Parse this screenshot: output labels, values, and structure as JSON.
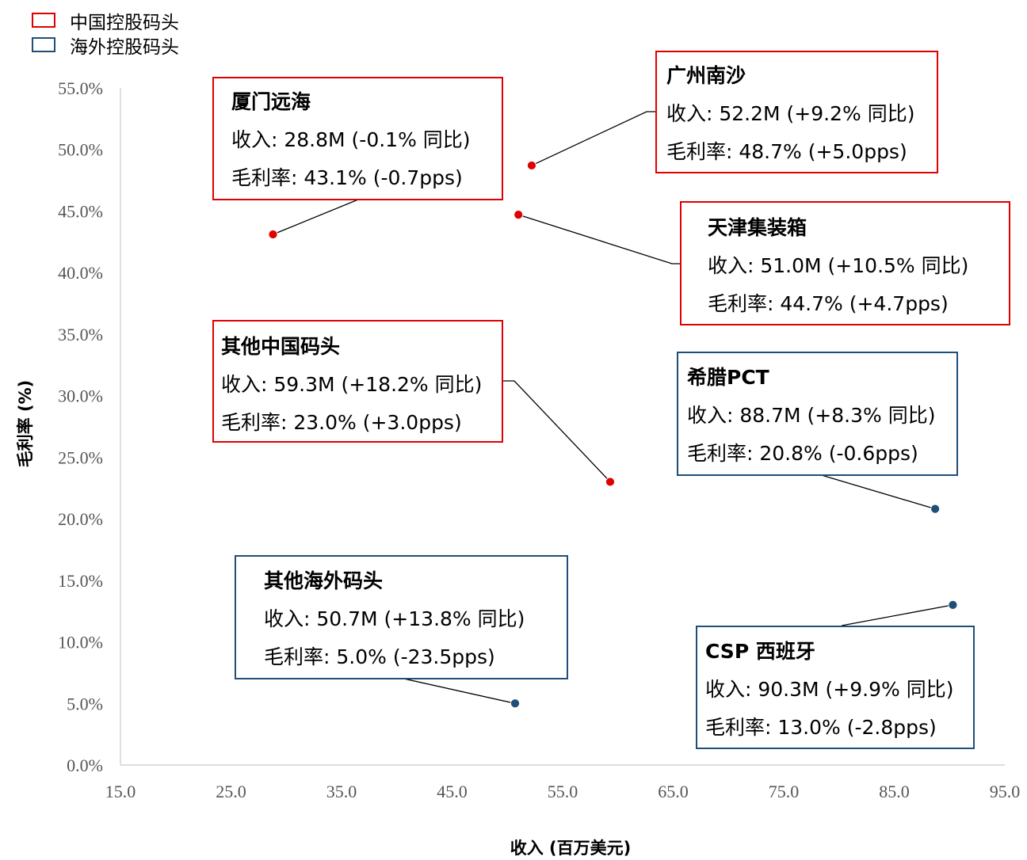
{
  "legend": [
    {
      "label": "中国控股码头",
      "color": "#e00000"
    },
    {
      "label": "海外控股码头",
      "color": "#1f4e79"
    }
  ],
  "chart_data": {
    "type": "scatter",
    "xlabel": "收入 (百万美元)",
    "ylabel": "毛利率 (%)",
    "xlim": [
      15.0,
      95.0
    ],
    "ylim": [
      0.0,
      55.0
    ],
    "xticks": [
      "15.0",
      "25.0",
      "35.0",
      "45.0",
      "55.0",
      "65.0",
      "75.0",
      "85.0",
      "95.0"
    ],
    "yticks": [
      "0.0%",
      "5.0%",
      "10.0%",
      "15.0%",
      "20.0%",
      "25.0%",
      "30.0%",
      "35.0%",
      "40.0%",
      "45.0%",
      "50.0%",
      "55.0%"
    ],
    "grid": false,
    "legend_position": "top-left",
    "points": [
      {
        "x": 28.8,
        "y": 43.1,
        "group": "中国控股码头",
        "color": "#e00000",
        "title": "厦门远海",
        "line1": "收入: 28.8M (-0.1% 同比)",
        "line2": "毛利率: 43.1% (-0.7pps)"
      },
      {
        "x": 52.2,
        "y": 48.7,
        "group": "中国控股码头",
        "color": "#e00000",
        "title": "广州南沙",
        "line1": "收入: 52.2M (+9.2% 同比)",
        "line2": "毛利率: 48.7% (+5.0pps)"
      },
      {
        "x": 51.0,
        "y": 44.7,
        "group": "中国控股码头",
        "color": "#e00000",
        "title": "天津集装箱",
        "line1": "收入: 51.0M (+10.5% 同比)",
        "line2": "毛利率: 44.7% (+4.7pps)"
      },
      {
        "x": 59.3,
        "y": 23.0,
        "group": "中国控股码头",
        "color": "#e00000",
        "title": "其他中国码头",
        "line1": "收入: 59.3M (+18.2% 同比)",
        "line2": "毛利率: 23.0% (+3.0pps)"
      },
      {
        "x": 88.7,
        "y": 20.8,
        "group": "海外控股码头",
        "color": "#1f4e79",
        "title": "希腊PCT",
        "line1": "收入: 88.7M (+8.3% 同比)",
        "line2": "毛利率: 20.8% (-0.6pps)"
      },
      {
        "x": 50.7,
        "y": 5.0,
        "group": "海外控股码头",
        "color": "#1f4e79",
        "title": "其他海外码头",
        "line1": "收入: 50.7M (+13.8% 同比)",
        "line2": "毛利率: 5.0% (-23.5pps)"
      },
      {
        "x": 90.3,
        "y": 13.0,
        "group": "海外控股码头",
        "color": "#1f4e79",
        "title": "CSP 西班牙",
        "line1": "收入: 90.3M (+9.9% 同比)",
        "line2": "毛利率: 13.0% (-2.8pps)"
      }
    ]
  }
}
